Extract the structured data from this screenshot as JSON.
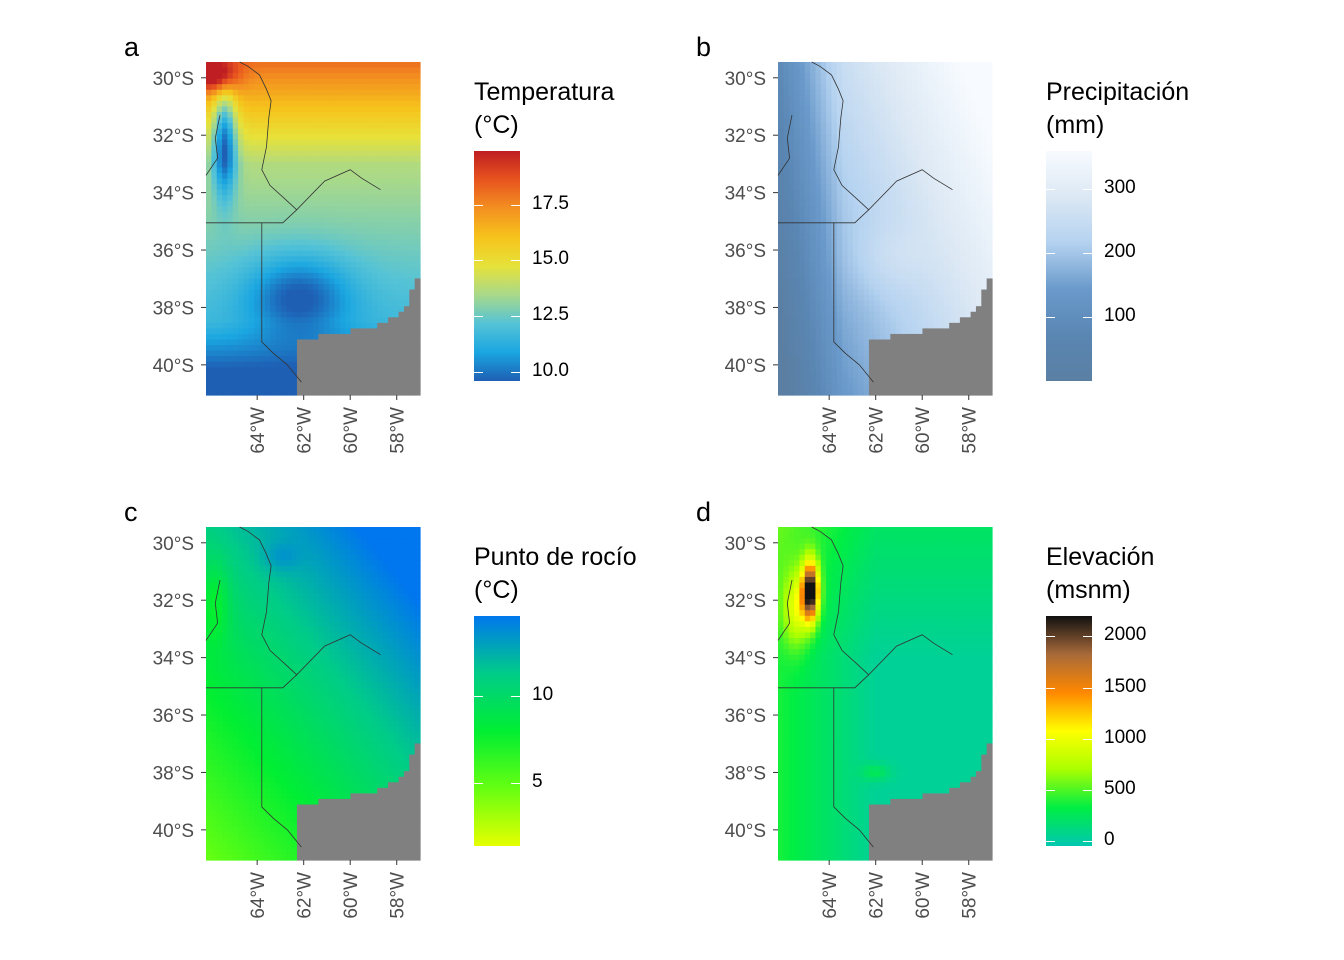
{
  "figure": {
    "lat_ticks": [
      "30°S",
      "32°S",
      "34°S",
      "36°S",
      "38°S",
      "40°S"
    ],
    "lon_ticks": [
      "64°W",
      "62°W",
      "60°W",
      "58°W"
    ],
    "lat_values": [
      -30,
      -32,
      -34,
      -36,
      -38,
      -40
    ],
    "lon_values": [
      -64,
      -62,
      -60,
      -58
    ],
    "lat_range": [
      -41.05,
      -29.45
    ],
    "lon_range": [
      -66.2,
      -57.0
    ],
    "colors": {
      "land_mask": "#808080",
      "border": "#333333"
    }
  },
  "panels": [
    {
      "tag": "a",
      "legend_title": "Temperatura\n(°C)",
      "legend_labels": [
        "17.5",
        "15.0",
        "12.5",
        "10.0"
      ],
      "legend_values": [
        17.5,
        15.0,
        12.5,
        10.0
      ],
      "legend_range": [
        9.6,
        19.9
      ],
      "colormap": [
        "#1e5fb4",
        "#1aa6e1",
        "#55c3d6",
        "#a9d98a",
        "#e6e23a",
        "#f6c31b",
        "#f39020",
        "#e8541f",
        "#bf1e22"
      ],
      "field": "temperature"
    },
    {
      "tag": "b",
      "legend_title": "Precipitación\n(mm)",
      "legend_labels": [
        "300",
        "200",
        "100"
      ],
      "legend_values": [
        300,
        200,
        100
      ],
      "legend_range": [
        0,
        360
      ],
      "colormap": [
        "#5a7fa3",
        "#5a86b3",
        "#6a9acb",
        "#b4d2f0",
        "#dce8f4",
        "#f7fbff"
      ],
      "field": "precipitation"
    },
    {
      "tag": "c",
      "legend_title": "Punto de rocío\n(°C)",
      "legend_labels": [
        "10",
        "5"
      ],
      "legend_values": [
        10,
        5
      ],
      "legend_range": [
        1.4,
        14.6
      ],
      "colormap": [
        "#e6ff00",
        "#66ff11",
        "#00ee33",
        "#00cc88",
        "#0077ee"
      ],
      "field": "dewpoint"
    },
    {
      "tag": "d",
      "legend_title": "Elevación\n(msnm)",
      "legend_labels": [
        "2000",
        "1500",
        "1000",
        "500",
        "0"
      ],
      "legend_values": [
        2000,
        1500,
        1000,
        500,
        0
      ],
      "legend_range": [
        -50,
        2200
      ],
      "colormap": [
        "#00c8b0",
        "#00ee44",
        "#aaff00",
        "#ffff00",
        "#ff8800",
        "#a86a3a",
        "#111111"
      ],
      "field": "elevation"
    }
  ]
}
